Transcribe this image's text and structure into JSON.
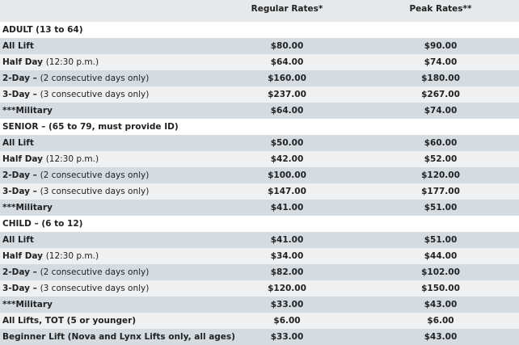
{
  "header": {
    "regular": "Regular Rates*",
    "peak": "Peak Rates**"
  },
  "sections": [
    {
      "title": "ADULT (13 to 64)",
      "rows": [
        {
          "label": "All Lift",
          "regular": "$80.00",
          "peak": "$90.00"
        },
        {
          "label": "Half Day",
          "note": "(12:30 p.m.)",
          "regular": "$64.00",
          "peak": "$74.00"
        },
        {
          "label": "2-Day –",
          "note": "(2 consecutive days only)",
          "regular": "$160.00",
          "peak": "$180.00"
        },
        {
          "label": "3-Day –",
          "note": "(3 consecutive days only)",
          "regular": "$237.00",
          "peak": "$267.00"
        },
        {
          "label": "***Military",
          "regular": "$64.00",
          "peak": "$74.00"
        }
      ]
    },
    {
      "title": "SENIOR – (65 to 79, must provide ID)",
      "rows": [
        {
          "label": "All Lift",
          "regular": "$50.00",
          "peak": "$60.00"
        },
        {
          "label": "Half Day",
          "note": "(12:30 p.m.)",
          "regular": "$42.00",
          "peak": "$52.00"
        },
        {
          "label": "2-Day –",
          "note": "(2 consecutive days only)",
          "regular": "$100.00",
          "peak": "$120.00"
        },
        {
          "label": "3-Day –",
          "note": "(3 consecutive days only)",
          "regular": "$147.00",
          "peak": "$177.00"
        },
        {
          "label": "***Military",
          "regular": "$41.00",
          "peak": "$51.00"
        }
      ]
    },
    {
      "title": "CHILD – (6 to 12)",
      "rows": [
        {
          "label": "All Lift",
          "regular": "$41.00",
          "peak": "$51.00"
        },
        {
          "label": "Half Day",
          "note": "(12:30 p.m.)",
          "regular": "$34.00",
          "peak": "$44.00"
        },
        {
          "label": "2-Day –",
          "note": "(2 consecutive days only)",
          "regular": "$82.00",
          "peak": "$102.00"
        },
        {
          "label": "3-Day –",
          "note": "(3 consecutive days only)",
          "regular": "$120.00",
          "peak": "$150.00"
        },
        {
          "label": "***Military",
          "regular": "$33.00",
          "peak": "$43.00"
        },
        {
          "label": "All Lifts, TOT (5 or younger)",
          "regular": "$6.00",
          "peak": "$6.00"
        },
        {
          "label": "Beginner Lift (Nova and Lynx Lifts only, all ages)",
          "regular": "$33.00",
          "peak": "$43.00"
        }
      ]
    }
  ]
}
